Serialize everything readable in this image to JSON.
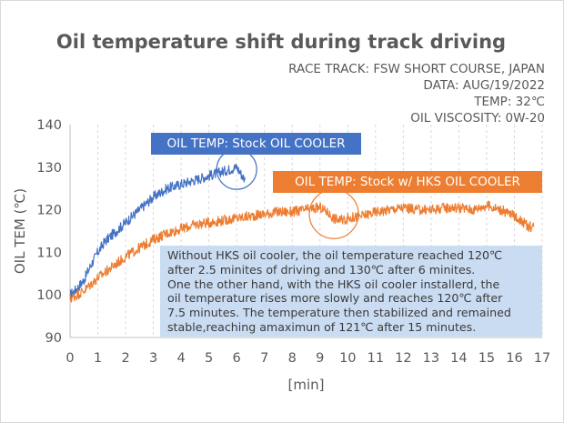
{
  "chart_data": {
    "type": "line",
    "title": "Oil temperature shift during track driving",
    "info_lines": [
      "RACE TRACK: FSW SHORT COURSE, JAPAN",
      "DATA: AUG/19/2022",
      "TEMP: 32℃",
      "OIL VISCOSITY: 0W-20"
    ],
    "xlabel": "[min]",
    "ylabel": "OIL TEM (℃)",
    "xlim": [
      0,
      17
    ],
    "ylim": [
      90,
      140
    ],
    "x_ticks": [
      0,
      1,
      2,
      3,
      4,
      5,
      6,
      7,
      8,
      9,
      10,
      11,
      12,
      13,
      14,
      15,
      16,
      17
    ],
    "y_ticks": [
      90,
      100,
      110,
      120,
      130,
      140
    ],
    "grid": "vertical dashed",
    "series": [
      {
        "name": "OIL TEMP: Stock OIL COOLER",
        "color": "#4472c4",
        "x": [
          0,
          0.25,
          0.5,
          0.75,
          1.0,
          1.25,
          1.5,
          1.75,
          2.0,
          2.25,
          2.5,
          2.75,
          3.0,
          3.25,
          3.5,
          3.75,
          4.0,
          4.25,
          4.5,
          4.75,
          5.0,
          5.25,
          5.5,
          5.75,
          6.0,
          6.1,
          6.2,
          6.3
        ],
        "y": [
          100,
          101.5,
          103.5,
          107,
          110,
          112.5,
          114,
          115.5,
          117,
          118.5,
          120,
          121.5,
          123,
          124,
          125,
          125.5,
          126,
          126.5,
          127,
          127.5,
          128,
          128.5,
          129,
          129.5,
          130,
          129,
          128,
          127
        ]
      },
      {
        "name": "OIL TEMP: Stock w/ HKS OIL COOLER",
        "color": "#ed7d31",
        "x": [
          0,
          0.25,
          0.5,
          0.75,
          1.0,
          1.5,
          2.0,
          2.5,
          3.0,
          3.5,
          4.0,
          4.5,
          5.0,
          5.5,
          6.0,
          6.5,
          7.0,
          7.5,
          8.0,
          8.5,
          9.0,
          9.25,
          9.5,
          9.75,
          10.0,
          10.5,
          11.0,
          11.5,
          12.0,
          12.5,
          13.0,
          13.5,
          14.0,
          14.5,
          15.0,
          15.5,
          16.0,
          16.25,
          16.5,
          16.7
        ],
        "y": [
          99,
          100,
          101,
          102.5,
          104,
          106.5,
          109,
          111,
          113,
          114.5,
          115.5,
          116.5,
          117,
          117.5,
          118,
          118.5,
          119,
          119.5,
          119.5,
          120,
          120.5,
          119.5,
          118,
          117.5,
          118,
          118.5,
          119.5,
          120,
          120.5,
          120,
          120,
          120.5,
          120.5,
          120,
          121,
          120,
          118.5,
          117.5,
          116,
          116
        ]
      }
    ]
  },
  "annotation": {
    "lines": [
      "Without HKS oil cooler, the oil temperature reached 120℃",
      "after 2.5 minites of driving and 130℃ after 6 minites.",
      "One the other hand, with the HKS oil cooler installerd, the",
      "oil temperature rises more slowly and reaches 120℃ after",
      "7.5 minutes. The temperature then stabilized and remained",
      "stable,reaching amaximun of 121℃ after 15 minutes."
    ]
  }
}
